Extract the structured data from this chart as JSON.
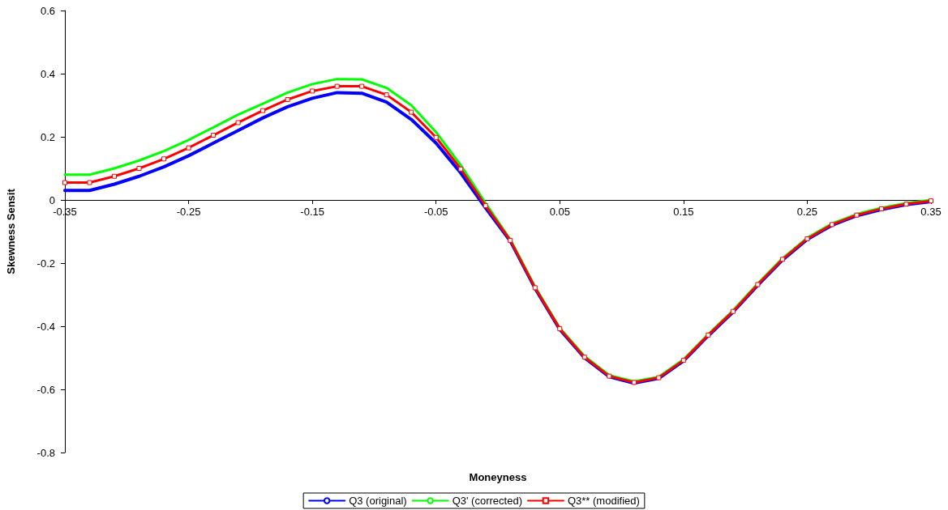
{
  "chart_data": {
    "type": "line",
    "xlabel": "Moneyness",
    "ylabel": "Skewness Sensit",
    "xlim": [
      -0.35,
      0.35
    ],
    "xticks": [
      -0.35,
      -0.25,
      -0.15,
      -0.05,
      0.05,
      0.15,
      0.25,
      0.35
    ],
    "ylim": [
      -0.8,
      0.6
    ],
    "yticks": [
      -0.8,
      -0.6,
      -0.4,
      -0.2,
      0,
      0.2,
      0.4,
      0.6
    ],
    "grid": false,
    "legend": "bottom",
    "x": [
      -0.35,
      -0.33,
      -0.31,
      -0.29,
      -0.27,
      -0.25,
      -0.23,
      -0.21,
      -0.19,
      -0.17,
      -0.15,
      -0.13,
      -0.11,
      -0.09,
      -0.07,
      -0.05,
      -0.03,
      -0.01,
      0.01,
      0.03,
      0.05,
      0.07,
      0.09,
      0.11,
      0.13,
      0.15,
      0.17,
      0.19,
      0.21,
      0.23,
      0.25,
      0.27,
      0.29,
      0.31,
      0.33,
      0.35
    ],
    "series": [
      {
        "name": "Q3 (original)",
        "color": "#0000ff",
        "marker": "none",
        "values": [
          0.03,
          0.03,
          0.05,
          0.075,
          0.105,
          0.14,
          0.18,
          0.22,
          0.26,
          0.295,
          0.322,
          0.34,
          0.338,
          0.31,
          0.255,
          0.18,
          0.085,
          -0.025,
          -0.13,
          -0.28,
          -0.41,
          -0.5,
          -0.56,
          -0.58,
          -0.565,
          -0.51,
          -0.43,
          -0.355,
          -0.27,
          -0.19,
          -0.125,
          -0.08,
          -0.05,
          -0.03,
          -0.015,
          -0.005
        ]
      },
      {
        "name": "Q3' (corrected)",
        "color": "#00ff00",
        "marker": "none",
        "values": [
          0.08,
          0.08,
          0.1,
          0.125,
          0.155,
          0.19,
          0.23,
          0.27,
          0.305,
          0.34,
          0.367,
          0.383,
          0.382,
          0.355,
          0.3,
          0.215,
          0.11,
          -0.01,
          -0.125,
          -0.275,
          -0.405,
          -0.495,
          -0.555,
          -0.575,
          -0.56,
          -0.505,
          -0.425,
          -0.35,
          -0.265,
          -0.185,
          -0.12,
          -0.075,
          -0.045,
          -0.025,
          -0.01,
          0
        ]
      },
      {
        "name": "Q3** (modified)",
        "color": "#ff0000",
        "marker": "square",
        "values": [
          0.055,
          0.055,
          0.075,
          0.1,
          0.13,
          0.165,
          0.205,
          0.245,
          0.283,
          0.318,
          0.345,
          0.36,
          0.36,
          0.333,
          0.278,
          0.198,
          0.098,
          -0.018,
          -0.128,
          -0.278,
          -0.408,
          -0.498,
          -0.558,
          -0.578,
          -0.563,
          -0.508,
          -0.428,
          -0.353,
          -0.268,
          -0.188,
          -0.123,
          -0.078,
          -0.048,
          -0.028,
          -0.013,
          -0.003
        ]
      }
    ]
  }
}
